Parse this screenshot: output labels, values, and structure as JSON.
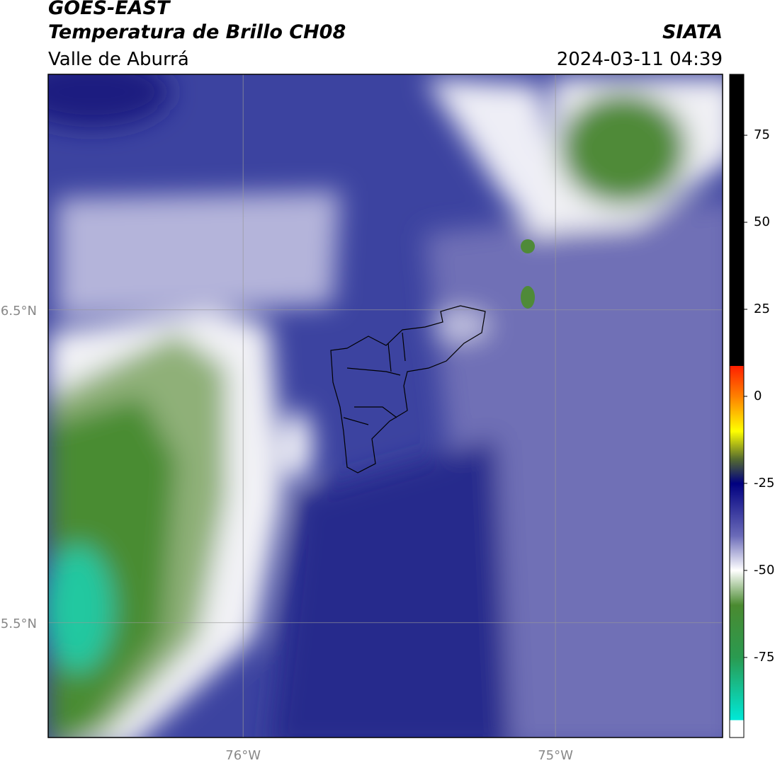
{
  "header": {
    "title": "GOES-EAST",
    "subtitle": "Temperatura de Brillo CH08",
    "region": "Valle de Aburrá",
    "source": "SIATA",
    "datetime": "2024-03-11 04:39"
  },
  "map": {
    "xlim": [
      -76.624,
      -74.465
    ],
    "ylim": [
      5.133,
      7.253
    ],
    "xticks": [
      {
        "value": -76,
        "label": "76°W"
      },
      {
        "value": -75,
        "label": "75°W"
      }
    ],
    "yticks": [
      {
        "value": 6.5,
        "label": "6.5°N"
      },
      {
        "value": 5.5,
        "label": "5.5°N"
      }
    ],
    "grid": true
  },
  "colorbar": {
    "clim": [
      -98,
      92.5
    ],
    "ticks": [
      75,
      50,
      25,
      0,
      -25,
      -50,
      -75
    ],
    "colormap": [
      {
        "value": 92.5,
        "color": "#000000"
      },
      {
        "value": 8.7,
        "color": "#000000"
      },
      {
        "value": 8.7,
        "color": "#ff2000"
      },
      {
        "value": 0,
        "color": "#ff8000"
      },
      {
        "value": -10,
        "color": "#ffff00"
      },
      {
        "value": -18,
        "color": "#556b2f"
      },
      {
        "value": -25,
        "color": "#000080"
      },
      {
        "value": -40,
        "color": "#6a6ab8"
      },
      {
        "value": -50,
        "color": "#ffffff"
      },
      {
        "value": -60,
        "color": "#4a8a30"
      },
      {
        "value": -75,
        "color": "#2a9a50"
      },
      {
        "value": -93,
        "color": "#00e8d8"
      },
      {
        "value": -93,
        "color": "#ffffff"
      },
      {
        "value": -98,
        "color": "#ffffff"
      }
    ]
  }
}
